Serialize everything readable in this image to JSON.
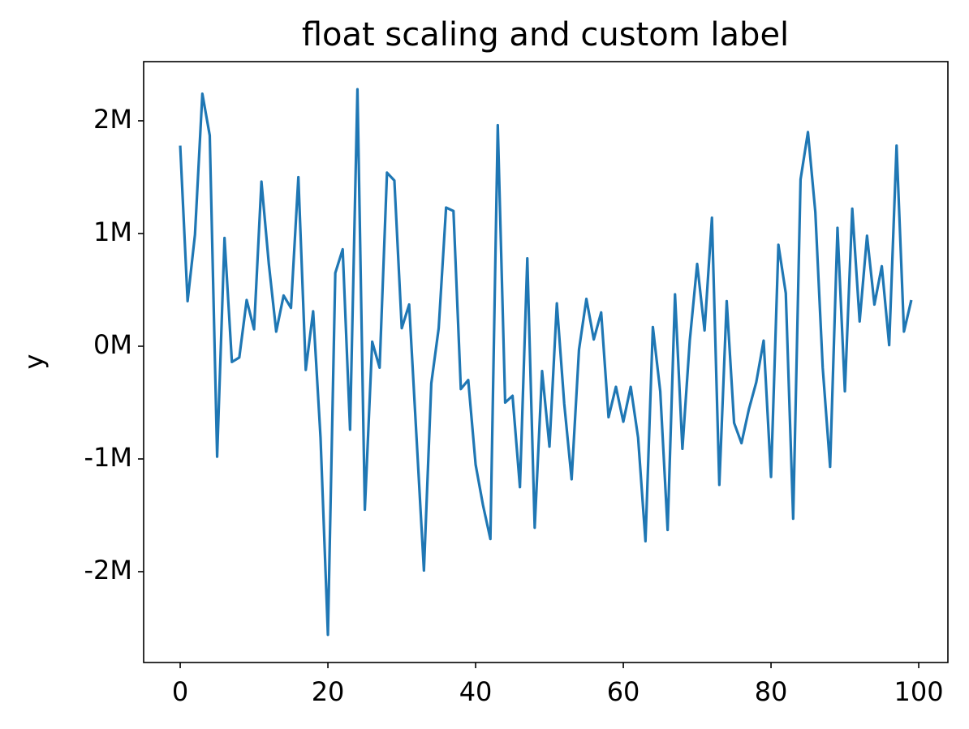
{
  "chart_data": {
    "type": "line",
    "title": "float scaling and custom label",
    "ylabel": "y",
    "x": [
      0,
      1,
      2,
      3,
      4,
      5,
      6,
      7,
      8,
      9,
      10,
      11,
      12,
      13,
      14,
      15,
      16,
      17,
      18,
      19,
      20,
      21,
      22,
      23,
      24,
      25,
      26,
      27,
      28,
      29,
      30,
      31,
      32,
      33,
      34,
      35,
      36,
      37,
      38,
      39,
      40,
      41,
      42,
      43,
      44,
      45,
      46,
      47,
      48,
      49,
      50,
      51,
      52,
      53,
      54,
      55,
      56,
      57,
      58,
      59,
      60,
      61,
      62,
      63,
      64,
      65,
      66,
      67,
      68,
      69,
      70,
      71,
      72,
      73,
      74,
      75,
      76,
      77,
      78,
      79,
      80,
      81,
      82,
      83,
      84,
      85,
      86,
      87,
      88,
      89,
      90,
      91,
      92,
      93,
      94,
      95,
      96,
      97,
      98,
      99
    ],
    "values": [
      1780000,
      400000,
      990000,
      2240000,
      1870000,
      -980000,
      960000,
      -140000,
      -100000,
      410000,
      150000,
      1460000,
      730000,
      130000,
      450000,
      340000,
      1500000,
      -210000,
      310000,
      -810000,
      -2560000,
      650000,
      860000,
      -740000,
      2280000,
      -1450000,
      40000,
      -190000,
      1540000,
      1470000,
      160000,
      370000,
      -810000,
      -1990000,
      -330000,
      160000,
      1230000,
      1200000,
      -380000,
      -300000,
      -1050000,
      -1410000,
      -1710000,
      1960000,
      -500000,
      -440000,
      -1250000,
      780000,
      -1610000,
      -220000,
      -890000,
      380000,
      -510000,
      -1180000,
      -30000,
      420000,
      60000,
      300000,
      -630000,
      -360000,
      -670000,
      -360000,
      -810000,
      -1730000,
      170000,
      -400000,
      -1630000,
      460000,
      -910000,
      50000,
      730000,
      140000,
      1140000,
      -1230000,
      400000,
      -680000,
      -860000,
      -560000,
      -320000,
      50000,
      -1160000,
      900000,
      470000,
      -1530000,
      1480000,
      1900000,
      1190000,
      -190000,
      -1070000,
      1050000,
      -400000,
      1220000,
      220000,
      980000,
      370000,
      710000,
      10000,
      1780000,
      130000,
      410000
    ],
    "color": "#1f77b4",
    "xlim": [
      -4.95,
      103.95
    ],
    "xticks": [
      0,
      20,
      40,
      60,
      80,
      100
    ],
    "ylim": [
      -2806000,
      2525000
    ],
    "yticks": [
      {
        "value": -2000000,
        "label": "-2M"
      },
      {
        "value": -1000000,
        "label": "-1M"
      },
      {
        "value": 0,
        "label": "0M"
      },
      {
        "value": 1000000,
        "label": "1M"
      },
      {
        "value": 2000000,
        "label": "2M"
      }
    ]
  }
}
